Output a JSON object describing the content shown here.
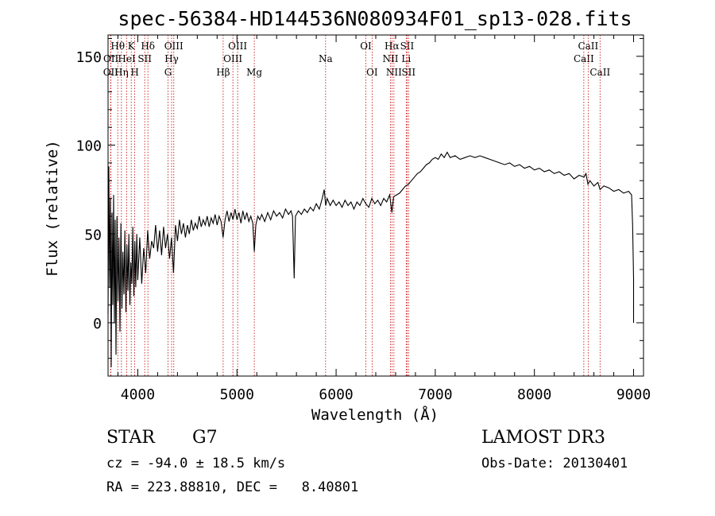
{
  "chart_data": {
    "type": "line",
    "title": "spec-56384-HD144536N080934F01_sp13-028.fits",
    "xlabel": "Wavelength (Å)",
    "ylabel": "Flux (relative)",
    "xlim": [
      3700,
      9100
    ],
    "ylim": [
      -30,
      162
    ],
    "x_ticks": [
      4000,
      5000,
      6000,
      7000,
      8000,
      9000
    ],
    "y_ticks": [
      0,
      50,
      100,
      150
    ],
    "series": [
      {
        "name": "flux",
        "points": [
          [
            3700,
            5
          ],
          [
            3708,
            88
          ],
          [
            3716,
            20
          ],
          [
            3724,
            70
          ],
          [
            3732,
            -25
          ],
          [
            3740,
            62
          ],
          [
            3748,
            10
          ],
          [
            3756,
            72
          ],
          [
            3764,
            0
          ],
          [
            3772,
            58
          ],
          [
            3780,
            -18
          ],
          [
            3790,
            60
          ],
          [
            3800,
            12
          ],
          [
            3810,
            48
          ],
          [
            3820,
            -5
          ],
          [
            3830,
            56
          ],
          [
            3840,
            8
          ],
          [
            3850,
            40
          ],
          [
            3860,
            16
          ],
          [
            3870,
            52
          ],
          [
            3880,
            6
          ],
          [
            3890,
            44
          ],
          [
            3900,
            18
          ],
          [
            3910,
            50
          ],
          [
            3920,
            10
          ],
          [
            3930,
            34
          ],
          [
            3940,
            22
          ],
          [
            3950,
            54
          ],
          [
            3960,
            15
          ],
          [
            3970,
            46
          ],
          [
            3980,
            20
          ],
          [
            3990,
            50
          ],
          [
            4000,
            24
          ],
          [
            4020,
            48
          ],
          [
            4040,
            22
          ],
          [
            4060,
            42
          ],
          [
            4080,
            28
          ],
          [
            4100,
            52
          ],
          [
            4120,
            36
          ],
          [
            4140,
            46
          ],
          [
            4160,
            42
          ],
          [
            4180,
            55
          ],
          [
            4200,
            40
          ],
          [
            4220,
            52
          ],
          [
            4240,
            38
          ],
          [
            4260,
            54
          ],
          [
            4280,
            42
          ],
          [
            4300,
            50
          ],
          [
            4320,
            36
          ],
          [
            4340,
            48
          ],
          [
            4360,
            28
          ],
          [
            4380,
            55
          ],
          [
            4400,
            46
          ],
          [
            4420,
            58
          ],
          [
            4440,
            50
          ],
          [
            4460,
            56
          ],
          [
            4480,
            48
          ],
          [
            4500,
            55
          ],
          [
            4520,
            50
          ],
          [
            4540,
            58
          ],
          [
            4560,
            52
          ],
          [
            4580,
            56
          ],
          [
            4600,
            53
          ],
          [
            4620,
            60
          ],
          [
            4640,
            54
          ],
          [
            4660,
            58
          ],
          [
            4680,
            55
          ],
          [
            4700,
            60
          ],
          [
            4720,
            54
          ],
          [
            4740,
            59
          ],
          [
            4760,
            56
          ],
          [
            4780,
            61
          ],
          [
            4800,
            55
          ],
          [
            4820,
            60
          ],
          [
            4840,
            57
          ],
          [
            4860,
            48
          ],
          [
            4880,
            58
          ],
          [
            4900,
            63
          ],
          [
            4920,
            57
          ],
          [
            4940,
            62
          ],
          [
            4960,
            58
          ],
          [
            4980,
            64
          ],
          [
            5000,
            58
          ],
          [
            5020,
            62
          ],
          [
            5040,
            56
          ],
          [
            5060,
            63
          ],
          [
            5080,
            58
          ],
          [
            5100,
            62
          ],
          [
            5120,
            57
          ],
          [
            5140,
            60
          ],
          [
            5160,
            56
          ],
          [
            5175,
            40
          ],
          [
            5190,
            55
          ],
          [
            5210,
            60
          ],
          [
            5230,
            58
          ],
          [
            5250,
            61
          ],
          [
            5280,
            57
          ],
          [
            5310,
            62
          ],
          [
            5340,
            58
          ],
          [
            5370,
            63
          ],
          [
            5400,
            60
          ],
          [
            5430,
            62
          ],
          [
            5460,
            59
          ],
          [
            5490,
            64
          ],
          [
            5520,
            61
          ],
          [
            5545,
            63
          ],
          [
            5560,
            60
          ],
          [
            5577,
            25
          ],
          [
            5590,
            60
          ],
          [
            5620,
            63
          ],
          [
            5650,
            61
          ],
          [
            5680,
            64
          ],
          [
            5710,
            62
          ],
          [
            5740,
            65
          ],
          [
            5770,
            63
          ],
          [
            5800,
            67
          ],
          [
            5830,
            64
          ],
          [
            5860,
            70
          ],
          [
            5880,
            75
          ],
          [
            5895,
            66
          ],
          [
            5910,
            70
          ],
          [
            5940,
            66
          ],
          [
            5970,
            69
          ],
          [
            6000,
            66
          ],
          [
            6030,
            68
          ],
          [
            6060,
            65
          ],
          [
            6090,
            69
          ],
          [
            6120,
            66
          ],
          [
            6150,
            68
          ],
          [
            6180,
            64
          ],
          [
            6210,
            68
          ],
          [
            6240,
            66
          ],
          [
            6270,
            70
          ],
          [
            6300,
            67
          ],
          [
            6330,
            65
          ],
          [
            6360,
            70
          ],
          [
            6390,
            67
          ],
          [
            6420,
            69
          ],
          [
            6450,
            66
          ],
          [
            6480,
            70
          ],
          [
            6510,
            68
          ],
          [
            6540,
            72
          ],
          [
            6563,
            62
          ],
          [
            6580,
            71
          ],
          [
            6610,
            72
          ],
          [
            6640,
            73
          ],
          [
            6670,
            75
          ],
          [
            6700,
            77
          ],
          [
            6730,
            78
          ],
          [
            6760,
            80
          ],
          [
            6790,
            82
          ],
          [
            6820,
            84
          ],
          [
            6850,
            85
          ],
          [
            6880,
            87
          ],
          [
            6910,
            89
          ],
          [
            6940,
            90
          ],
          [
            6970,
            92
          ],
          [
            7000,
            93
          ],
          [
            7030,
            92
          ],
          [
            7060,
            95
          ],
          [
            7090,
            93
          ],
          [
            7120,
            96
          ],
          [
            7150,
            93
          ],
          [
            7200,
            94
          ],
          [
            7250,
            92
          ],
          [
            7300,
            93
          ],
          [
            7350,
            94
          ],
          [
            7400,
            93
          ],
          [
            7450,
            94
          ],
          [
            7500,
            93
          ],
          [
            7550,
            92
          ],
          [
            7600,
            91
          ],
          [
            7650,
            90
          ],
          [
            7700,
            89
          ],
          [
            7750,
            90
          ],
          [
            7800,
            88
          ],
          [
            7850,
            89
          ],
          [
            7900,
            87
          ],
          [
            7950,
            88
          ],
          [
            8000,
            86
          ],
          [
            8050,
            87
          ],
          [
            8100,
            85
          ],
          [
            8150,
            86
          ],
          [
            8200,
            84
          ],
          [
            8250,
            85
          ],
          [
            8300,
            83
          ],
          [
            8350,
            84
          ],
          [
            8400,
            81
          ],
          [
            8450,
            83
          ],
          [
            8500,
            82
          ],
          [
            8520,
            84
          ],
          [
            8540,
            78
          ],
          [
            8560,
            80
          ],
          [
            8600,
            77
          ],
          [
            8640,
            79
          ],
          [
            8662,
            75
          ],
          [
            8700,
            77
          ],
          [
            8750,
            76
          ],
          [
            8800,
            74
          ],
          [
            8850,
            75
          ],
          [
            8900,
            73
          ],
          [
            8950,
            74
          ],
          [
            8980,
            72
          ],
          [
            8990,
            55
          ],
          [
            9000,
            25
          ],
          [
            9000,
            0
          ]
        ]
      }
    ],
    "spectral_lines": [
      {
        "label": "OII",
        "wavelength": 3727,
        "row": 2
      },
      {
        "label": "OII",
        "wavelength": 3729,
        "row": 1
      },
      {
        "label": "Hθ",
        "wavelength": 3798,
        "row": 0
      },
      {
        "label": "Hη",
        "wavelength": 3835,
        "row": 2
      },
      {
        "label": "HeI",
        "wavelength": 3889,
        "row": 1
      },
      {
        "label": "K",
        "wavelength": 3934,
        "row": 0
      },
      {
        "label": "H",
        "wavelength": 3969,
        "row": 2
      },
      {
        "label": "SII",
        "wavelength": 4070,
        "row": 1
      },
      {
        "label": "Hδ",
        "wavelength": 4102,
        "row": 0
      },
      {
        "label": "G",
        "wavelength": 4305,
        "row": 2
      },
      {
        "label": "Hγ",
        "wavelength": 4341,
        "row": 1
      },
      {
        "label": "OIII",
        "wavelength": 4363,
        "row": 0
      },
      {
        "label": "Hβ",
        "wavelength": 4861,
        "row": 2
      },
      {
        "label": "OIII",
        "wavelength": 4959,
        "row": 1
      },
      {
        "label": "OIII",
        "wavelength": 5007,
        "row": 0
      },
      {
        "label": "Mg",
        "wavelength": 5175,
        "row": 2
      },
      {
        "label": "Na",
        "wavelength": 5894,
        "row": 1
      },
      {
        "label": "OI",
        "wavelength": 6300,
        "row": 0
      },
      {
        "label": "OI",
        "wavelength": 6363,
        "row": 2
      },
      {
        "label": "NII",
        "wavelength": 6548,
        "row": 1
      },
      {
        "label": "Hα",
        "wavelength": 6563,
        "row": 0
      },
      {
        "label": "NII",
        "wavelength": 6583,
        "row": 2
      },
      {
        "label": "Li",
        "wavelength": 6707,
        "row": 1
      },
      {
        "label": "SII",
        "wavelength": 6716,
        "row": 0
      },
      {
        "label": "SII",
        "wavelength": 6731,
        "row": 2
      },
      {
        "label": "CaII",
        "wavelength": 8498,
        "row": 1
      },
      {
        "label": "CaII",
        "wavelength": 8542,
        "row": 0
      },
      {
        "label": "CaII",
        "wavelength": 8662,
        "row": 2
      }
    ],
    "line_color": "#000000",
    "marker_color": "#c00000"
  },
  "footer": {
    "object_type": "STAR",
    "subclass": "G7",
    "survey": "LAMOST DR3",
    "redshift": "cz = -94.0 ± 18.5 km/s",
    "obs_date": "Obs-Date: 20130401",
    "coordinates": "RA = 223.88810, DEC =   8.40801"
  }
}
